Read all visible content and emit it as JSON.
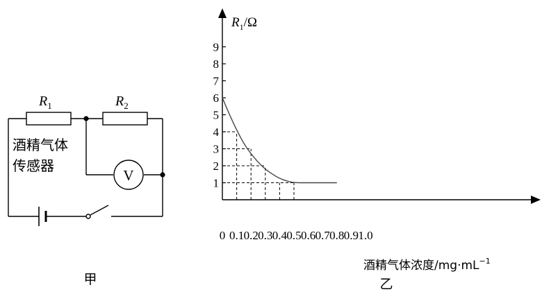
{
  "circuit": {
    "r1_symbol": "R",
    "r1_sub": "1",
    "r2_symbol": "R",
    "r2_sub": "2",
    "sensor_line1": "酒精气体",
    "sensor_line2": "传感器",
    "voltmeter": "V",
    "caption": "甲"
  },
  "graph": {
    "caption": "乙",
    "y_label_var": "R",
    "y_label_sub": "1",
    "y_label_unit": "/Ω",
    "x_label_text": "酒精气体浓度/mg·mL",
    "x_label_sup": "−1"
  },
  "chart_data": {
    "type": "line",
    "x_ticks": [
      "0",
      "0.1",
      "0.2",
      "0.3",
      "0.4",
      "0.5",
      "0.6",
      "0.7",
      "0.8",
      "0.9",
      "1.0"
    ],
    "y_ticks": [
      "1",
      "2",
      "3",
      "4",
      "5",
      "6",
      "7",
      "8",
      "9"
    ],
    "xlim": [
      0,
      1.0
    ],
    "ylim": [
      0,
      9
    ],
    "series": [
      {
        "points": [
          [
            0,
            6
          ],
          [
            0.05,
            5
          ],
          [
            0.1,
            4.1
          ],
          [
            0.15,
            3.3
          ],
          [
            0.2,
            2.7
          ],
          [
            0.25,
            2.2
          ],
          [
            0.3,
            1.8
          ],
          [
            0.35,
            1.5
          ],
          [
            0.4,
            1.25
          ],
          [
            0.45,
            1.1
          ],
          [
            0.5,
            1
          ],
          [
            0.6,
            1
          ],
          [
            0.7,
            1
          ],
          [
            0.8,
            1
          ]
        ]
      }
    ],
    "guides": [
      {
        "x": 0.1,
        "y": 4
      },
      {
        "x": 0.2,
        "y": 3
      },
      {
        "x": 0.3,
        "y": 2
      },
      {
        "x": 0.4,
        "y": 1
      },
      {
        "x": 0.5,
        "y": 1
      }
    ]
  }
}
